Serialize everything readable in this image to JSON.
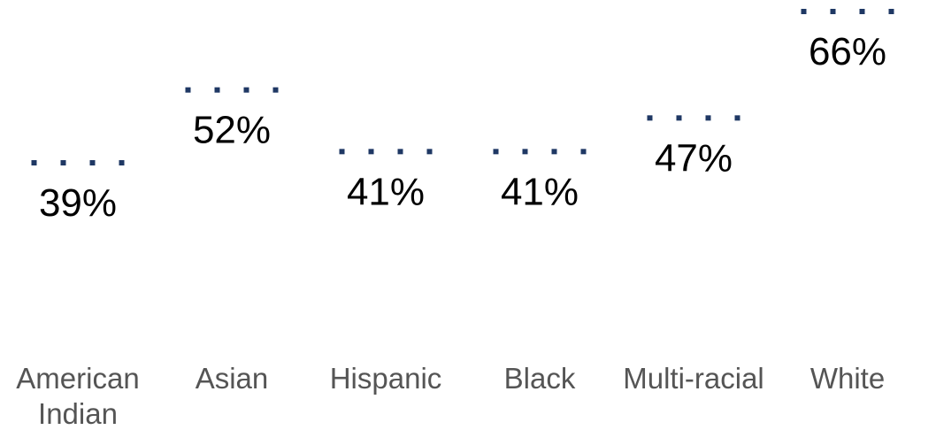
{
  "chart_data": {
    "type": "scatter",
    "marker_style": "dotted-dash",
    "categories": [
      "American Indian",
      "Asian",
      "Hispanic",
      "Black",
      "Multi-racial",
      "White"
    ],
    "category_lines": [
      [
        "American",
        "Indian"
      ],
      [
        "Asian"
      ],
      [
        "Hispanic"
      ],
      [
        "Black"
      ],
      [
        "Multi-racial"
      ],
      [
        "White"
      ]
    ],
    "series": [
      {
        "values": [
          39,
          52,
          41,
          41,
          47,
          66
        ]
      }
    ],
    "data_labels": [
      "39%",
      "52%",
      "41%",
      "41%",
      "47%",
      "66%"
    ],
    "title": "",
    "xlabel": "",
    "ylabel": "",
    "ylim": [
      0,
      70
    ],
    "grid": false,
    "colors": {
      "marker": "#1f3864",
      "label_text": "#000000",
      "tick_text": "#555555"
    }
  }
}
